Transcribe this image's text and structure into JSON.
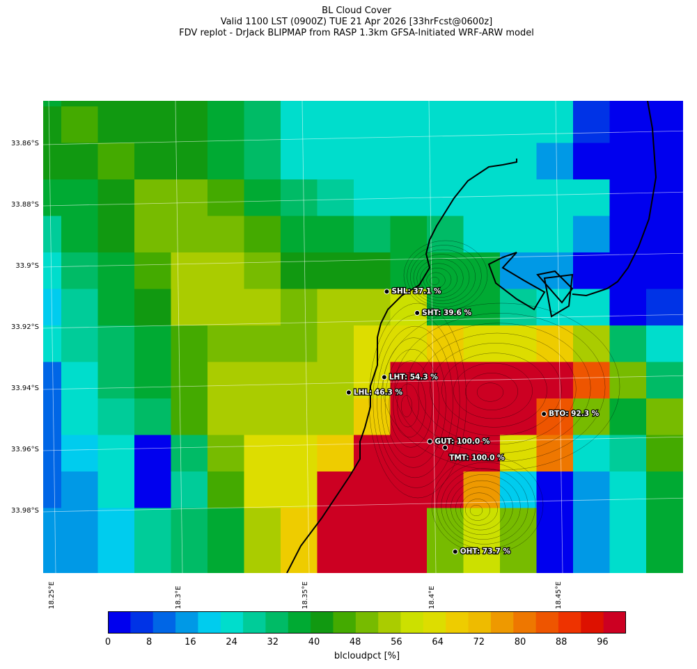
{
  "title": {
    "line1": "BL Cloud Cover",
    "line2": "Valid 1100 LST (0900Z) TUE 21 Apr 2026 [33hrFcst@0600z]",
    "line3": "FDV replot - DrJack BLIPMAP from RASP 1.3km GFSA-Initiated WRF-ARW model"
  },
  "axes": {
    "lat_labels": [
      "33.86°S",
      "33.88°S",
      "33.9°S",
      "33.92°S",
      "33.94°S",
      "33.96°S",
      "33.98°S"
    ],
    "lon_labels": [
      "18.25°E",
      "18.3°E",
      "18.35°E",
      "18.4°E",
      "18.45°E"
    ]
  },
  "colorbar": {
    "label": "blcloudpct [%]",
    "ticks": [
      "0",
      "8",
      "16",
      "24",
      "32",
      "40",
      "48",
      "56",
      "64",
      "72",
      "80",
      "88",
      "96"
    ],
    "colors": [
      "#0000ee",
      "#0033e6",
      "#0066e6",
      "#0099e6",
      "#00ccee",
      "#00ddcc",
      "#00cc99",
      "#00bb66",
      "#00aa33",
      "#119911",
      "#44aa00",
      "#77bb00",
      "#aacc00",
      "#cce000",
      "#dddd00",
      "#eecc00",
      "#eebb00",
      "#ee9900",
      "#ee7700",
      "#ee5500",
      "#ee3300",
      "#dd1100",
      "#cc0022"
    ]
  },
  "grid": {
    "cols": 18,
    "rows": 13,
    "values": [
      [
        38,
        43,
        43,
        40,
        40,
        37,
        34,
        26,
        26,
        26,
        23,
        23,
        26,
        26,
        26,
        5,
        3,
        3
      ],
      [
        40,
        44,
        43,
        43,
        40,
        37,
        34,
        26,
        26,
        26,
        23,
        23,
        26,
        26,
        26,
        5,
        3,
        3
      ],
      [
        40,
        40,
        44,
        43,
        43,
        37,
        34,
        26,
        26,
        26,
        26,
        26,
        26,
        26,
        14,
        3,
        3,
        3
      ],
      [
        36,
        39,
        43,
        49,
        49,
        45,
        37,
        34,
        30,
        26,
        26,
        26,
        26,
        26,
        26,
        26,
        3,
        3
      ],
      [
        30,
        36,
        40,
        48,
        48,
        48,
        44,
        38,
        36,
        34,
        37,
        34,
        26,
        26,
        26,
        14,
        3,
        3
      ],
      [
        22,
        32,
        39,
        45,
        55,
        55,
        50,
        41,
        41,
        41,
        38,
        38,
        38,
        14,
        14,
        3,
        3,
        3
      ],
      [
        18,
        28,
        37,
        43,
        55,
        55,
        55,
        48,
        55,
        55,
        59,
        36,
        38,
        30,
        26,
        22,
        4,
        6
      ],
      [
        22,
        28,
        32,
        38,
        47,
        52,
        52,
        48,
        56,
        65,
        64,
        66,
        64,
        64,
        67,
        56,
        32,
        24
      ],
      [
        13,
        26,
        32,
        37,
        47,
        56,
        55,
        53,
        55,
        62,
        98,
        98,
        98,
        98,
        98,
        83,
        48,
        32
      ],
      [
        13,
        22,
        28,
        33,
        44,
        56,
        56,
        56,
        56,
        68,
        96,
        98,
        98,
        98,
        85,
        48,
        37,
        50
      ],
      [
        10,
        18,
        22,
        0,
        34,
        52,
        62,
        62,
        68,
        98,
        98,
        98,
        98,
        64,
        79,
        22,
        30,
        44
      ],
      [
        10,
        14,
        22,
        0,
        30,
        44,
        62,
        65,
        98,
        98,
        98,
        98,
        75,
        18,
        0,
        16,
        26,
        38
      ],
      [
        14,
        14,
        18,
        30,
        33,
        37,
        55,
        68,
        98,
        98,
        98,
        52,
        60,
        50,
        0,
        14,
        26,
        38
      ]
    ]
  },
  "stations": [
    {
      "label": "SHL: 37.1 %",
      "lat": -33.908,
      "lon": 18.382
    },
    {
      "label": "SHT: 39.6 %",
      "lat": -33.915,
      "lon": 18.394
    },
    {
      "label": "LHT: 54.3 %",
      "lat": -33.936,
      "lon": 18.381
    },
    {
      "label": "LHL: 46.3 %",
      "lat": -33.941,
      "lon": 18.367
    },
    {
      "label": "BTO: 92.3 %",
      "lat": -33.948,
      "lon": 18.444
    },
    {
      "label": "GUT: 100.0 %",
      "lat": -33.957,
      "lon": 18.399
    },
    {
      "label": "TMT: 100.0 %",
      "lat": -33.959,
      "lon": 18.405
    },
    {
      "label": "OHT: 73.7 %",
      "lat": -33.993,
      "lon": 18.409
    }
  ]
}
